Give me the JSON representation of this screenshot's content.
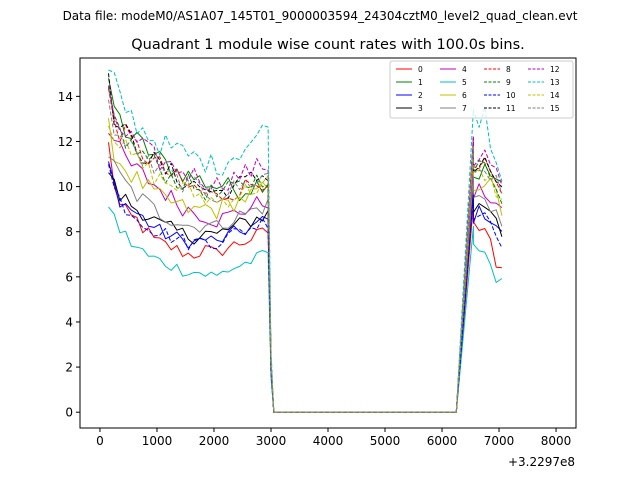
{
  "chart_data": {
    "type": "line",
    "suptitle": "Data file: modeM0/AS1A07_145T01_9000003594_24304cztM0_level2_quad_clean.evt",
    "title": "Quadrant 1 module wise count rates with 100.0s bins.",
    "xlabel": "",
    "ylabel": "",
    "x_offset_label": "+3.2297e8",
    "xlim": [
      -350,
      8350
    ],
    "ylim": [
      -0.7,
      15.7
    ],
    "xticks": [
      0,
      1000,
      2000,
      3000,
      4000,
      5000,
      6000,
      7000,
      8000
    ],
    "yticks": [
      0,
      2,
      4,
      6,
      8,
      10,
      12,
      14
    ],
    "grid": false,
    "legend_position": "top-right",
    "legend_columns": 4,
    "x_start": 150,
    "x_step": 100,
    "gap_start": 3050,
    "gap_end": 6250,
    "series": [
      {
        "name": "0",
        "color": "#ff0000",
        "dashed": false,
        "profile": [
          11.8,
          10.2,
          9.1,
          8.8,
          8.6,
          8.5,
          8.2,
          7.9,
          7.6,
          7.5,
          7.4,
          7.3,
          7.2,
          7.1,
          7.0,
          7.0,
          7.1,
          7.2,
          7.1,
          7.0,
          7.2,
          7.3,
          7.4,
          7.5,
          7.6,
          7.7,
          7.8,
          7.9,
          8.0,
          8.1,
          8.2,
          8.3,
          8.4,
          7.8,
          6.5,
          6.4
        ]
      },
      {
        "name": "1",
        "color": "#008000",
        "dashed": false,
        "profile": [
          14.2,
          13.6,
          12.9,
          12.5,
          12.2,
          12.0,
          11.8,
          11.6,
          11.4,
          11.2,
          11.0,
          10.9,
          10.7,
          10.6,
          10.5,
          10.4,
          10.3,
          10.2,
          10.1,
          10.0,
          10.1,
          10.0,
          9.9,
          9.8,
          9.9,
          10.0,
          10.1,
          10.2,
          10.3,
          10.4,
          10.5,
          10.6,
          10.7,
          10.5,
          10.3,
          9.9
        ]
      },
      {
        "name": "2",
        "color": "#0000ff",
        "dashed": false,
        "profile": [
          11.0,
          10.0,
          9.5,
          9.2,
          9.0,
          8.8,
          8.6,
          8.4,
          8.2,
          8.0,
          7.9,
          7.8,
          7.7,
          7.6,
          7.6,
          7.5,
          7.6,
          7.7,
          7.6,
          7.5,
          7.7,
          7.8,
          7.9,
          8.0,
          8.1,
          8.2,
          8.3,
          8.4,
          8.5,
          8.6,
          8.7,
          8.8,
          8.9,
          8.6,
          8.3,
          7.8
        ]
      },
      {
        "name": "3",
        "color": "#000000",
        "dashed": false,
        "profile": [
          10.8,
          10.0,
          9.6,
          9.4,
          9.2,
          9.0,
          8.9,
          8.7,
          8.5,
          8.3,
          8.2,
          8.1,
          8.0,
          7.9,
          7.8,
          7.8,
          7.9,
          8.0,
          7.9,
          7.8,
          8.0,
          8.1,
          8.2,
          8.3,
          8.4,
          8.5,
          8.6,
          8.7,
          8.8,
          8.9,
          9.0,
          9.1,
          9.2,
          9.0,
          8.8,
          7.9
        ]
      },
      {
        "name": "4",
        "color": "#bf00bf",
        "dashed": false,
        "profile": [
          12.8,
          12.0,
          11.5,
          11.2,
          10.9,
          10.7,
          10.5,
          10.3,
          10.1,
          9.9,
          9.7,
          9.5,
          9.3,
          9.1,
          9.0,
          8.9,
          8.8,
          8.7,
          8.6,
          8.5,
          8.6,
          8.7,
          8.8,
          8.9,
          9.0,
          9.1,
          9.2,
          9.3,
          9.4,
          9.5,
          9.6,
          9.7,
          9.8,
          9.5,
          9.2,
          8.7
        ]
      },
      {
        "name": "5",
        "color": "#00bfbf",
        "dashed": false,
        "profile": [
          9.3,
          8.6,
          8.1,
          7.8,
          7.5,
          7.3,
          7.1,
          6.9,
          6.8,
          6.7,
          6.6,
          6.5,
          6.4,
          6.3,
          6.3,
          6.2,
          6.2,
          6.1,
          6.1,
          6.0,
          6.2,
          6.3,
          6.4,
          6.5,
          6.6,
          6.7,
          6.8,
          6.9,
          7.0,
          7.1,
          7.2,
          7.3,
          7.4,
          6.6,
          5.8,
          5.7
        ]
      },
      {
        "name": "6",
        "color": "#bfbf00",
        "dashed": false,
        "profile": [
          12.5,
          11.6,
          11.1,
          10.8,
          10.5,
          10.3,
          10.1,
          9.9,
          9.7,
          9.5,
          9.4,
          9.3,
          9.2,
          9.1,
          9.0,
          8.9,
          9.0,
          9.1,
          9.0,
          8.9,
          9.1,
          9.2,
          9.3,
          9.4,
          9.5,
          9.6,
          9.7,
          9.8,
          9.9,
          10.0,
          10.1,
          10.2,
          10.3,
          10.0,
          9.6,
          8.9
        ]
      },
      {
        "name": "7",
        "color": "#808080",
        "dashed": false,
        "profile": [
          11.5,
          10.8,
          10.4,
          10.1,
          9.8,
          9.6,
          9.4,
          9.2,
          9.0,
          8.8,
          8.7,
          8.6,
          8.5,
          8.4,
          8.3,
          8.2,
          8.3,
          8.4,
          8.3,
          8.2,
          8.4,
          8.5,
          8.6,
          8.7,
          8.8,
          8.9,
          9.0,
          9.1,
          9.2,
          9.3,
          9.4,
          9.5,
          9.6,
          9.2,
          8.9,
          8.2
        ]
      },
      {
        "name": "8",
        "color": "#ff0000",
        "dashed": true,
        "profile": [
          14.0,
          13.0,
          12.5,
          12.2,
          11.9,
          11.7,
          11.5,
          11.3,
          11.1,
          10.9,
          10.7,
          10.5,
          10.3,
          10.1,
          10.0,
          9.9,
          9.8,
          9.7,
          9.6,
          9.5,
          9.6,
          9.7,
          9.8,
          9.9,
          10.0,
          10.1,
          10.2,
          10.3,
          10.4,
          10.5,
          10.6,
          10.7,
          10.8,
          10.4,
          10.0,
          9.4
        ]
      },
      {
        "name": "9",
        "color": "#008000",
        "dashed": true,
        "profile": [
          13.8,
          13.0,
          12.4,
          12.1,
          11.8,
          11.6,
          11.4,
          11.2,
          11.0,
          10.8,
          10.6,
          10.4,
          10.3,
          10.2,
          10.1,
          10.0,
          9.9,
          9.8,
          9.7,
          9.6,
          9.7,
          9.8,
          9.9,
          10.0,
          10.1,
          10.2,
          10.3,
          10.4,
          10.5,
          10.6,
          10.7,
          10.8,
          10.9,
          10.6,
          10.2,
          9.6
        ]
      },
      {
        "name": "10",
        "color": "#0000ff",
        "dashed": true,
        "profile": [
          10.9,
          9.9,
          9.4,
          9.1,
          8.9,
          8.7,
          8.5,
          8.3,
          8.1,
          8.0,
          7.9,
          7.8,
          7.7,
          7.6,
          7.5,
          7.5,
          7.6,
          7.7,
          7.6,
          7.5,
          7.7,
          7.8,
          7.9,
          8.0,
          8.1,
          8.2,
          8.3,
          8.4,
          8.5,
          8.6,
          8.7,
          8.8,
          8.9,
          8.5,
          8.1,
          7.6
        ]
      },
      {
        "name": "11",
        "color": "#000000",
        "dashed": true,
        "profile": [
          14.5,
          13.2,
          12.6,
          12.3,
          12.0,
          11.8,
          11.5,
          11.3,
          11.1,
          10.9,
          10.7,
          10.6,
          10.4,
          10.3,
          10.2,
          10.1,
          10.0,
          9.9,
          9.8,
          9.7,
          9.8,
          9.9,
          10.0,
          10.1,
          10.2,
          10.3,
          10.4,
          10.5,
          10.6,
          10.7,
          10.8,
          10.9,
          11.0,
          10.7,
          10.3,
          9.7
        ]
      },
      {
        "name": "12",
        "color": "#bf00bf",
        "dashed": true,
        "profile": [
          13.9,
          13.1,
          12.6,
          12.3,
          12.1,
          11.9,
          11.7,
          11.5,
          11.3,
          11.1,
          11.0,
          10.9,
          10.8,
          10.7,
          10.6,
          10.5,
          10.4,
          10.3,
          10.2,
          10.1,
          10.2,
          10.3,
          10.4,
          10.5,
          10.6,
          10.7,
          10.8,
          10.9,
          11.0,
          11.1,
          11.2,
          11.3,
          11.4,
          11.0,
          10.6,
          9.9
        ]
      },
      {
        "name": "13",
        "color": "#00bfbf",
        "dashed": true,
        "profile": [
          14.9,
          14.5,
          13.9,
          13.5,
          13.1,
          12.8,
          12.5,
          12.3,
          12.1,
          11.9,
          11.8,
          11.7,
          11.6,
          11.5,
          11.4,
          11.3,
          11.2,
          11.1,
          11.0,
          10.9,
          11.0,
          11.2,
          11.4,
          11.6,
          11.8,
          12.0,
          12.2,
          12.4,
          12.6,
          12.8,
          13.0,
          13.2,
          13.4,
          12.2,
          11.2,
          10.4
        ]
      },
      {
        "name": "14",
        "color": "#bfbf00",
        "dashed": true,
        "profile": [
          13.2,
          12.4,
          11.9,
          11.6,
          11.3,
          11.1,
          10.9,
          10.7,
          10.5,
          10.3,
          10.2,
          10.1,
          10.0,
          9.9,
          9.8,
          9.7,
          9.6,
          9.5,
          9.4,
          9.3,
          9.4,
          9.5,
          9.6,
          9.7,
          9.8,
          9.9,
          10.0,
          10.1,
          10.2,
          10.3,
          10.4,
          10.5,
          10.6,
          10.2,
          9.9,
          9.3
        ]
      },
      {
        "name": "15",
        "color": "#808080",
        "dashed": true,
        "profile": [
          13.5,
          12.7,
          12.2,
          11.9,
          11.6,
          11.4,
          11.2,
          11.0,
          10.8,
          10.6,
          10.5,
          10.4,
          10.3,
          10.2,
          10.1,
          10.0,
          9.9,
          9.8,
          9.7,
          9.6,
          9.7,
          9.8,
          9.9,
          10.0,
          10.1,
          10.2,
          10.3,
          10.4,
          10.5,
          10.6,
          10.7,
          10.8,
          10.9,
          10.5,
          10.1,
          9.5
        ]
      }
    ]
  }
}
